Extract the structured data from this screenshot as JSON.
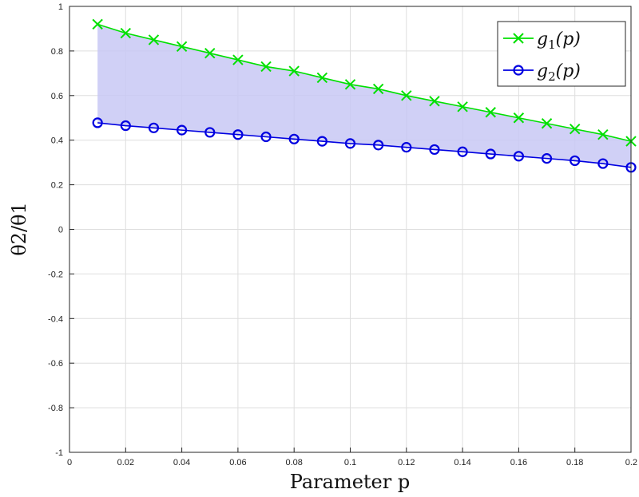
{
  "chart_data": {
    "type": "line",
    "xlabel": "Parameter p",
    "ylabel": "θ2/θ1",
    "xlim": [
      0,
      0.2
    ],
    "ylim": [
      -1,
      1
    ],
    "x_ticks": [
      0,
      0.02,
      0.04,
      0.06,
      0.08,
      0.1,
      0.12,
      0.14,
      0.16,
      0.18,
      0.2
    ],
    "x_tick_labels": [
      "0",
      "0.02",
      "0.04",
      "0.06",
      "0.08",
      "0.1",
      "0.12",
      "0.14",
      "0.16",
      "0.18",
      "0.2"
    ],
    "y_ticks": [
      -1,
      -0.8,
      -0.6,
      -0.4,
      -0.2,
      0,
      0.2,
      0.4,
      0.6,
      0.8,
      1
    ],
    "y_tick_labels": [
      "-1",
      "-0.8",
      "-0.6",
      "-0.4",
      "-0.2",
      "0",
      "0.2",
      "0.4",
      "0.6",
      "0.8",
      "1"
    ],
    "grid": true,
    "legend_position": "top-right",
    "fill_between": {
      "color": "#c8c8f5",
      "between": [
        "g1(p)",
        "g2(p)"
      ]
    },
    "x": [
      0.01,
      0.02,
      0.03,
      0.04,
      0.05,
      0.06,
      0.07,
      0.08,
      0.09,
      0.1,
      0.11,
      0.12,
      0.13,
      0.14,
      0.15,
      0.16,
      0.17,
      0.18,
      0.19,
      0.2
    ],
    "series": [
      {
        "name": "g1(p)",
        "color": "#00e000",
        "marker": "x",
        "values": [
          0.92,
          0.88,
          0.85,
          0.82,
          0.79,
          0.76,
          0.73,
          0.71,
          0.68,
          0.65,
          0.63,
          0.6,
          0.575,
          0.55,
          0.525,
          0.5,
          0.475,
          0.45,
          0.425,
          0.395
        ]
      },
      {
        "name": "g2(p)",
        "color": "#0000e0",
        "marker": "o",
        "values": [
          0.478,
          0.465,
          0.455,
          0.445,
          0.435,
          0.425,
          0.415,
          0.405,
          0.395,
          0.385,
          0.378,
          0.368,
          0.358,
          0.348,
          0.338,
          0.328,
          0.318,
          0.308,
          0.295,
          0.278
        ]
      }
    ]
  }
}
